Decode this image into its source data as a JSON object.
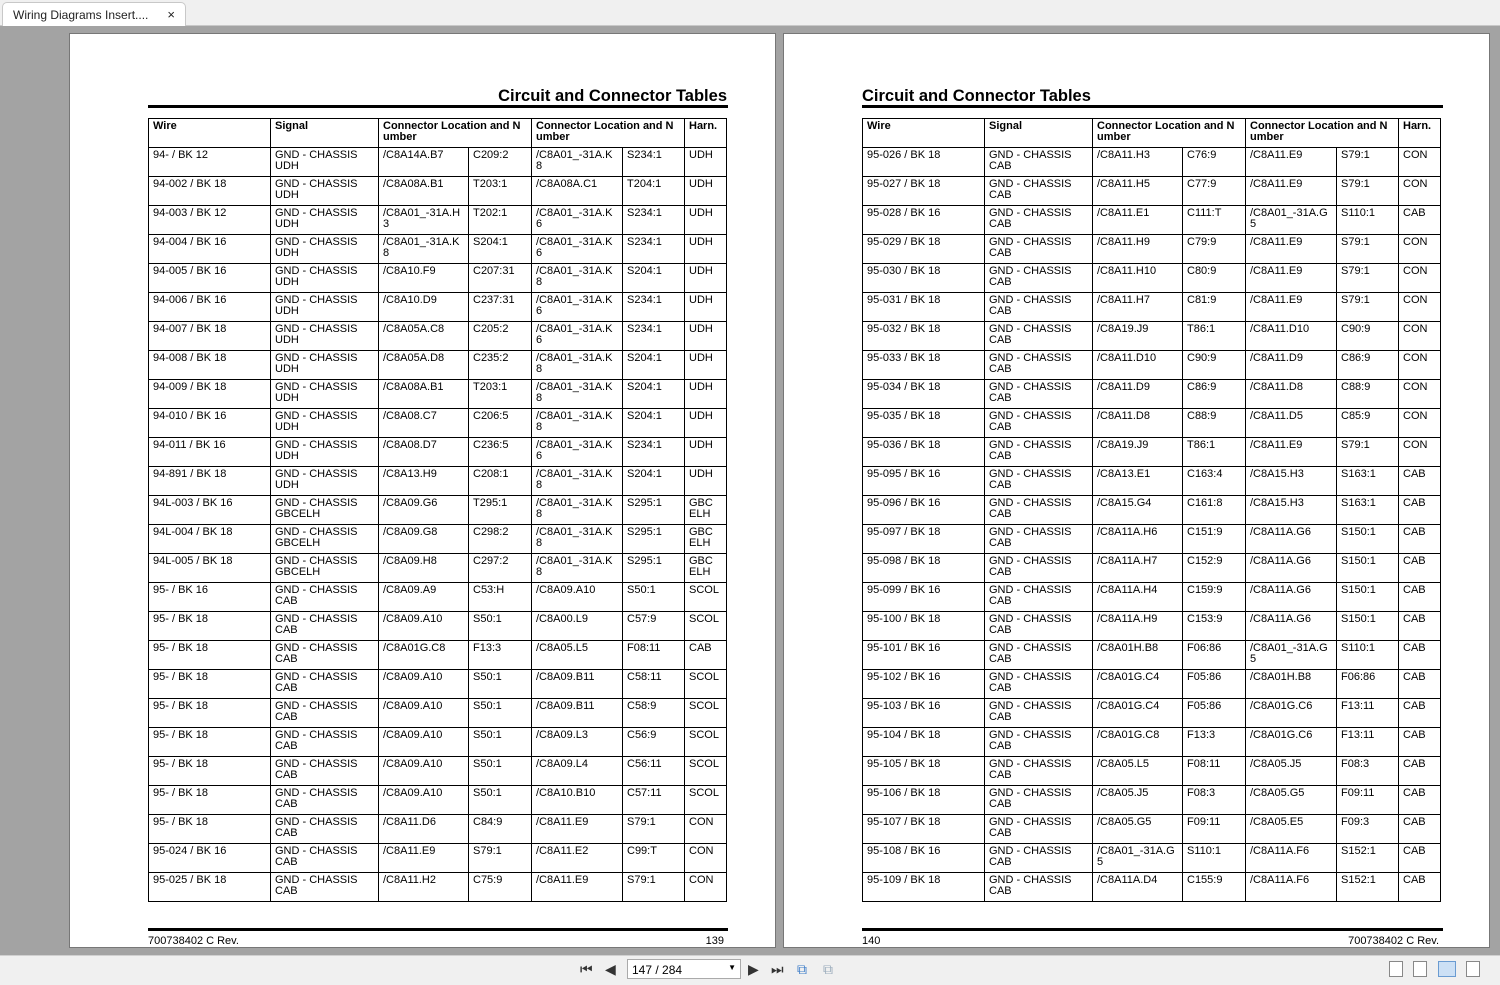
{
  "tab": {
    "title": "Wiring Diagrams Insert....",
    "close": "×"
  },
  "headers": [
    "Wire",
    "Signal",
    "Connector Location and Number",
    "Connector Location and Number",
    "Harn."
  ],
  "left_page": {
    "title": "Circuit and Connector Tables",
    "footer_left": "700738402 C Rev.",
    "footer_right": "139",
    "rows": [
      [
        "94- / BK 12",
        "GND - CHASSIS UDH",
        "/C8A14A.B7",
        "C209:2",
        "/C8A01_-31A.K8",
        "S234:1",
        "UDH"
      ],
      [
        "94-002 / BK 18",
        "GND - CHASSIS UDH",
        "/C8A08A.B1",
        "T203:1",
        "/C8A08A.C1",
        "T204:1",
        "UDH"
      ],
      [
        "94-003 / BK 12",
        "GND - CHASSIS UDH",
        "/C8A01_-31A.H3",
        "T202:1",
        "/C8A01_-31A.K6",
        "S234:1",
        "UDH"
      ],
      [
        "94-004 / BK 16",
        "GND - CHASSIS UDH",
        "/C8A01_-31A.K8",
        "S204:1",
        "/C8A01_-31A.K6",
        "S234:1",
        "UDH"
      ],
      [
        "94-005 / BK 16",
        "GND - CHASSIS UDH",
        "/C8A10.F9",
        "C207:31",
        "/C8A01_-31A.K8",
        "S204:1",
        "UDH"
      ],
      [
        "94-006 / BK 16",
        "GND - CHASSIS UDH",
        "/C8A10.D9",
        "C237:31",
        "/C8A01_-31A.K6",
        "S234:1",
        "UDH"
      ],
      [
        "94-007 / BK 18",
        "GND - CHASSIS UDH",
        "/C8A05A.C8",
        "C205:2",
        "/C8A01_-31A.K6",
        "S234:1",
        "UDH"
      ],
      [
        "94-008 / BK 18",
        "GND - CHASSIS UDH",
        "/C8A05A.D8",
        "C235:2",
        "/C8A01_-31A.K8",
        "S204:1",
        "UDH"
      ],
      [
        "94-009 / BK 18",
        "GND - CHASSIS UDH",
        "/C8A08A.B1",
        "T203:1",
        "/C8A01_-31A.K8",
        "S204:1",
        "UDH"
      ],
      [
        "94-010 / BK 16",
        "GND - CHASSIS UDH",
        "/C8A08.C7",
        "C206:5",
        "/C8A01_-31A.K8",
        "S204:1",
        "UDH"
      ],
      [
        "94-011 / BK 16",
        "GND - CHASSIS UDH",
        "/C8A08.D7",
        "C236:5",
        "/C8A01_-31A.K6",
        "S234:1",
        "UDH"
      ],
      [
        "94-891 / BK 18",
        "GND - CHASSIS UDH",
        "/C8A13.H9",
        "C208:1",
        "/C8A01_-31A.K8",
        "S204:1",
        "UDH"
      ],
      [
        "94L-003 / BK 16",
        "GND - CHASSIS GBCELH",
        "/C8A09.G6",
        "T295:1",
        "/C8A01_-31A.K8",
        "S295:1",
        "GBC ELH"
      ],
      [
        "94L-004 / BK 18",
        "GND - CHASSIS GBCELH",
        "/C8A09.G8",
        "C298:2",
        "/C8A01_-31A.K8",
        "S295:1",
        "GBC ELH"
      ],
      [
        "94L-005 / BK 18",
        "GND - CHASSIS GBCELH",
        "/C8A09.H8",
        "C297:2",
        "/C8A01_-31A.K8",
        "S295:1",
        "GBC ELH"
      ],
      [
        "95- / BK 16",
        "GND - CHASSIS CAB",
        "/C8A09.A9",
        "C53:H",
        "/C8A09.A10",
        "S50:1",
        "SCOL"
      ],
      [
        "95- / BK 18",
        "GND - CHASSIS CAB",
        "/C8A09.A10",
        "S50:1",
        "/C8A00.L9",
        "C57:9",
        "SCOL"
      ],
      [
        "95- / BK 18",
        "GND - CHASSIS CAB",
        "/C8A01G.C8",
        "F13:3",
        "/C8A05.L5",
        "F08:11",
        "CAB"
      ],
      [
        "95- / BK 18",
        "GND - CHASSIS CAB",
        "/C8A09.A10",
        "S50:1",
        "/C8A09.B11",
        "C58:11",
        "SCOL"
      ],
      [
        "95- / BK 18",
        "GND - CHASSIS CAB",
        "/C8A09.A10",
        "S50:1",
        "/C8A09.B11",
        "C58:9",
        "SCOL"
      ],
      [
        "95- / BK 18",
        "GND - CHASSIS CAB",
        "/C8A09.A10",
        "S50:1",
        "/C8A09.L3",
        "C56:9",
        "SCOL"
      ],
      [
        "95- / BK 18",
        "GND - CHASSIS CAB",
        "/C8A09.A10",
        "S50:1",
        "/C8A09.L4",
        "C56:11",
        "SCOL"
      ],
      [
        "95- / BK 18",
        "GND - CHASSIS CAB",
        "/C8A09.A10",
        "S50:1",
        "/C8A10.B10",
        "C57:11",
        "SCOL"
      ],
      [
        "95- / BK 18",
        "GND - CHASSIS CAB",
        "/C8A11.D6",
        "C84:9",
        "/C8A11.E9",
        "S79:1",
        "CON"
      ],
      [
        "95-024 / BK 16",
        "GND - CHASSIS CAB",
        "/C8A11.E9",
        "S79:1",
        "/C8A11.E2",
        "C99:T",
        "CON"
      ],
      [
        "95-025 / BK 18",
        "GND - CHASSIS CAB",
        "/C8A11.H2",
        "C75:9",
        "/C8A11.E9",
        "S79:1",
        "CON"
      ]
    ]
  },
  "right_page": {
    "title": "Circuit and Connector Tables",
    "footer_left": "140",
    "footer_right": "700738402 C Rev.",
    "rows": [
      [
        "95-026 / BK 18",
        "GND - CHASSIS CAB",
        "/C8A11.H3",
        "C76:9",
        "/C8A11.E9",
        "S79:1",
        "CON"
      ],
      [
        "95-027 / BK 18",
        "GND - CHASSIS CAB",
        "/C8A11.H5",
        "C77:9",
        "/C8A11.E9",
        "S79:1",
        "CON"
      ],
      [
        "95-028 / BK 16",
        "GND - CHASSIS CAB",
        "/C8A11.E1",
        "C111:T",
        "/C8A01_-31A.G5",
        "S110:1",
        "CAB"
      ],
      [
        "95-029 / BK 18",
        "GND - CHASSIS CAB",
        "/C8A11.H9",
        "C79:9",
        "/C8A11.E9",
        "S79:1",
        "CON"
      ],
      [
        "95-030 / BK 18",
        "GND - CHASSIS CAB",
        "/C8A11.H10",
        "C80:9",
        "/C8A11.E9",
        "S79:1",
        "CON"
      ],
      [
        "95-031 / BK 18",
        "GND - CHASSIS CAB",
        "/C8A11.H7",
        "C81:9",
        "/C8A11.E9",
        "S79:1",
        "CON"
      ],
      [
        "95-032 / BK 18",
        "GND - CHASSIS CAB",
        "/C8A19.J9",
        "T86:1",
        "/C8A11.D10",
        "C90:9",
        "CON"
      ],
      [
        "95-033 / BK 18",
        "GND - CHASSIS CAB",
        "/C8A11.D10",
        "C90:9",
        "/C8A11.D9",
        "C86:9",
        "CON"
      ],
      [
        "95-034 / BK 18",
        "GND - CHASSIS CAB",
        "/C8A11.D9",
        "C86:9",
        "/C8A11.D8",
        "C88:9",
        "CON"
      ],
      [
        "95-035 / BK 18",
        "GND - CHASSIS CAB",
        "/C8A11.D8",
        "C88:9",
        "/C8A11.D5",
        "C85:9",
        "CON"
      ],
      [
        "95-036 / BK 18",
        "GND - CHASSIS CAB",
        "/C8A19.J9",
        "T86:1",
        "/C8A11.E9",
        "S79:1",
        "CON"
      ],
      [
        "95-095 / BK 16",
        "GND - CHASSIS CAB",
        "/C8A13.E1",
        "C163:4",
        "/C8A15.H3",
        "S163:1",
        "CAB"
      ],
      [
        "95-096 / BK 16",
        "GND - CHASSIS CAB",
        "/C8A15.G4",
        "C161:8",
        "/C8A15.H3",
        "S163:1",
        "CAB"
      ],
      [
        "95-097 / BK 18",
        "GND - CHASSIS CAB",
        "/C8A11A.H6",
        "C151:9",
        "/C8A11A.G6",
        "S150:1",
        "CAB"
      ],
      [
        "95-098 / BK 18",
        "GND - CHASSIS CAB",
        "/C8A11A.H7",
        "C152:9",
        "/C8A11A.G6",
        "S150:1",
        "CAB"
      ],
      [
        "95-099 / BK 16",
        "GND - CHASSIS CAB",
        "/C8A11A.H4",
        "C159:9",
        "/C8A11A.G6",
        "S150:1",
        "CAB"
      ],
      [
        "95-100 / BK 18",
        "GND - CHASSIS CAB",
        "/C8A11A.H9",
        "C153:9",
        "/C8A11A.G6",
        "S150:1",
        "CAB"
      ],
      [
        "95-101 / BK 16",
        "GND - CHASSIS CAB",
        "/C8A01H.B8",
        "F06:86",
        "/C8A01_-31A.G5",
        "S110:1",
        "CAB"
      ],
      [
        "95-102 / BK 16",
        "GND - CHASSIS CAB",
        "/C8A01G.C4",
        "F05:86",
        "/C8A01H.B8",
        "F06:86",
        "CAB"
      ],
      [
        "95-103 / BK 16",
        "GND - CHASSIS CAB",
        "/C8A01G.C4",
        "F05:86",
        "/C8A01G.C6",
        "F13:11",
        "CAB"
      ],
      [
        "95-104 / BK 18",
        "GND - CHASSIS CAB",
        "/C8A01G.C8",
        "F13:3",
        "/C8A01G.C6",
        "F13:11",
        "CAB"
      ],
      [
        "95-105 / BK 18",
        "GND - CHASSIS CAB",
        "/C8A05.L5",
        "F08:11",
        "/C8A05.J5",
        "F08:3",
        "CAB"
      ],
      [
        "95-106 / BK 18",
        "GND - CHASSIS CAB",
        "/C8A05.J5",
        "F08:3",
        "/C8A05.G5",
        "F09:11",
        "CAB"
      ],
      [
        "95-107 / BK 18",
        "GND - CHASSIS CAB",
        "/C8A05.G5",
        "F09:11",
        "/C8A05.E5",
        "F09:3",
        "CAB"
      ],
      [
        "95-108 / BK 16",
        "GND - CHASSIS CAB",
        "/C8A01_-31A.G5",
        "S110:1",
        "/C8A11A.F6",
        "S152:1",
        "CAB"
      ],
      [
        "95-109 / BK 18",
        "GND - CHASSIS CAB",
        "/C8A11A.D4",
        "C155:9",
        "/C8A11A.F6",
        "S152:1",
        "CAB"
      ]
    ]
  },
  "toolbar": {
    "page_value": "147 / 284",
    "icons": [
      "first-page-icon",
      "prev-page-icon",
      "next-page-icon",
      "last-page-icon",
      "back-view-icon",
      "forward-view-icon",
      "single-page-icon",
      "continuous-icon",
      "two-page-icon",
      "two-page-continuous-icon"
    ],
    "active_view": "two-page"
  }
}
